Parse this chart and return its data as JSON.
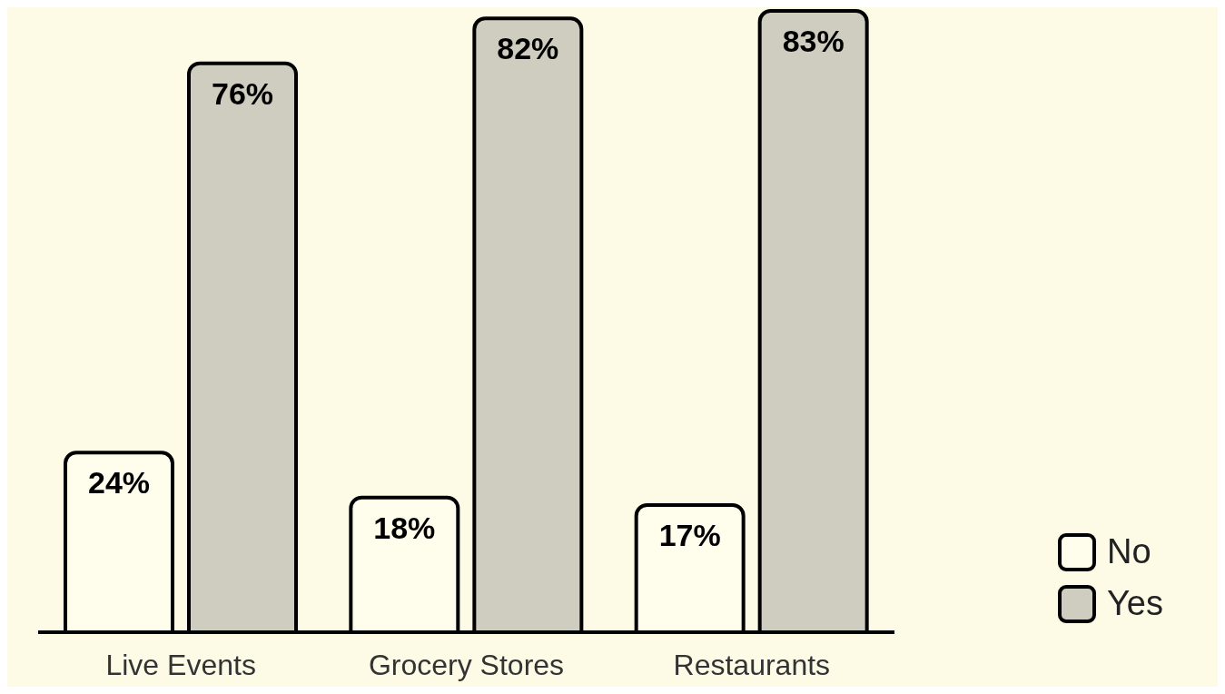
{
  "chart_data": {
    "type": "bar",
    "categories": [
      "Live Events",
      "Grocery Stores",
      "Restaurants"
    ],
    "series": [
      {
        "name": "No",
        "color": "#fffdeb",
        "values": [
          24,
          18,
          17
        ],
        "value_labels": [
          "24%",
          "18%",
          "17%"
        ]
      },
      {
        "name": "Yes",
        "color": "#cfcdbf",
        "values": [
          76,
          82,
          83
        ],
        "value_labels": [
          "76%",
          "82%",
          "83%"
        ]
      }
    ],
    "legend": "bottom right",
    "grid": false
  }
}
